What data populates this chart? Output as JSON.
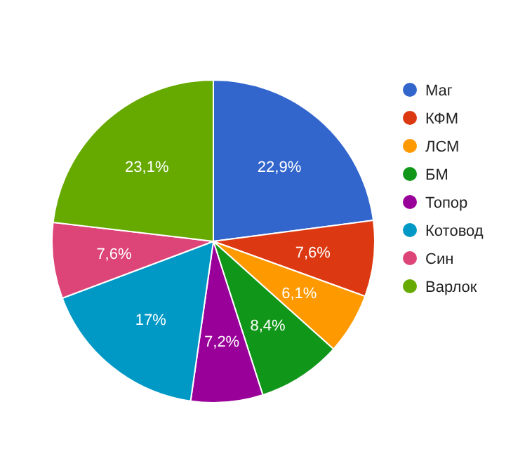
{
  "chart_data": {
    "type": "pie",
    "categories": [
      "Маг",
      "КФМ",
      "ЛСМ",
      "БМ",
      "Топор",
      "Котовод",
      "Син",
      "Варлок"
    ],
    "values": [
      22.9,
      7.6,
      6.1,
      8.4,
      7.2,
      17,
      7.6,
      23.1
    ],
    "value_labels": [
      "22,9%",
      "7,6%",
      "6,1%",
      "8,4%",
      "7,2%",
      "17%",
      "7,6%",
      "23,1%"
    ],
    "colors": [
      "#3366cc",
      "#dc3912",
      "#ff9900",
      "#109618",
      "#990099",
      "#0099c6",
      "#dd4477",
      "#66aa00"
    ],
    "legend": "right"
  }
}
